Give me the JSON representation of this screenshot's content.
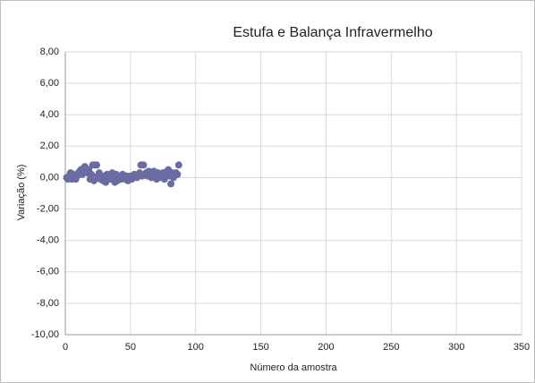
{
  "chart_data": {
    "type": "scatter",
    "title": "Estufa e Balança Infravermelho",
    "xlabel": "Número da amostra",
    "ylabel": "Variação (%)",
    "series": [
      {
        "color": "#6a6ba3",
        "x": [
          1,
          2,
          3,
          4,
          5,
          6,
          7,
          8,
          9,
          10,
          11,
          12,
          13,
          14,
          15,
          16,
          17,
          18,
          19,
          20,
          21,
          22,
          23,
          24,
          25,
          26,
          27,
          28,
          29,
          30,
          31,
          32,
          33,
          34,
          35,
          36,
          37,
          38,
          39,
          40,
          41,
          42,
          43,
          44,
          45,
          46,
          47,
          48,
          49,
          50,
          51,
          52,
          53,
          54,
          55,
          56,
          57,
          58,
          59,
          60,
          61,
          62,
          63,
          64,
          65,
          66,
          67,
          68,
          69,
          70,
          71,
          72,
          73,
          74,
          75,
          76,
          77,
          78,
          79,
          80,
          81,
          82,
          83,
          84,
          85,
          86,
          87
        ],
        "values": [
          0.0,
          -0.1,
          0.1,
          0.3,
          -0.1,
          0.2,
          0.0,
          -0.1,
          0.1,
          0.3,
          0.4,
          0.5,
          0.2,
          0.6,
          0.7,
          0.4,
          0.3,
          0.5,
          -0.1,
          0.2,
          0.8,
          -0.2,
          0.8,
          0.8,
          0.1,
          0.3,
          -0.1,
          0.0,
          -0.2,
          0.1,
          -0.3,
          0.2,
          0.0,
          0.1,
          -0.1,
          0.3,
          0.0,
          -0.3,
          0.2,
          -0.2,
          0.1,
          0.0,
          -0.1,
          0.2,
          0.0,
          -0.1,
          0.1,
          -0.2,
          0.0,
          0.1,
          -0.1,
          0.0,
          0.2,
          0.1,
          0.0,
          0.2,
          0.3,
          0.8,
          0.1,
          0.8,
          0.2,
          0.3,
          0.1,
          0.4,
          0.2,
          0.0,
          0.3,
          0.4,
          0.1,
          -0.1,
          0.3,
          0.0,
          0.2,
          0.1,
          0.3,
          -0.1,
          0.2,
          0.4,
          0.5,
          0.1,
          -0.4,
          0.3,
          0.0,
          0.2,
          0.3,
          0.2,
          0.8
        ]
      }
    ],
    "xlim": [
      0,
      350
    ],
    "xticks": [
      0,
      50,
      100,
      150,
      200,
      250,
      300,
      350
    ],
    "ylim": [
      -10,
      8
    ],
    "yticks": [
      {
        "value": -10,
        "label": "-10,00"
      },
      {
        "value": -8,
        "label": "-8,00"
      },
      {
        "value": -6,
        "label": "-6,00"
      },
      {
        "value": -4,
        "label": "-4,00"
      },
      {
        "value": -2,
        "label": "-2,00"
      },
      {
        "value": 0,
        "label": "0,00"
      },
      {
        "value": 2,
        "label": "2,00"
      },
      {
        "value": 4,
        "label": "4,00"
      },
      {
        "value": 6,
        "label": "6,00"
      },
      {
        "value": 8,
        "label": "8,00"
      }
    ],
    "grid": true
  }
}
